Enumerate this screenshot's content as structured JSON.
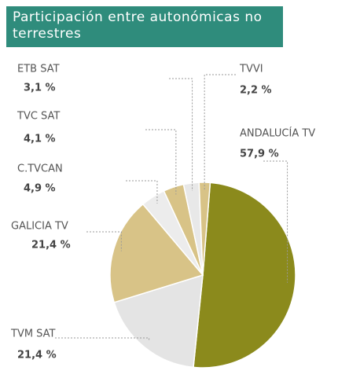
{
  "chart_data": {
    "type": "pie",
    "title": "Participación entre autonómicas no terrestres",
    "categories": [
      "ANDALUCÍA TV",
      "TVM SAT",
      "GALICIA TV",
      "C.TVCAN",
      "TVC SAT",
      "ETB SAT",
      "TVVI"
    ],
    "values": [
      57.9,
      21.4,
      21.4,
      4.9,
      4.1,
      3.1,
      2.2
    ],
    "value_labels": [
      "57,9 %",
      "21,4 %",
      "21,4 %",
      "4,9 %",
      "4,1 %",
      "3,1 %",
      "2,2 %"
    ],
    "colors": [
      "#8b8a1c",
      "#e4e4e4",
      "#d8c387",
      "#ececec",
      "#d8c387",
      "#e8e8e8",
      "#d8c387"
    ]
  }
}
